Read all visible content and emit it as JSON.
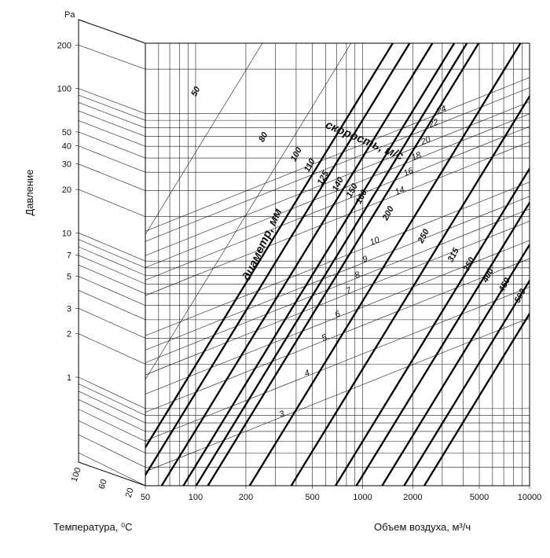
{
  "chart_data": {
    "type": "line",
    "xlabel": "Объем воздуха, м³/ч",
    "ylabel": "Давление",
    "y_unit": "Pa",
    "temp_label": "Температура, ⁰С",
    "x_scale": "log",
    "y_scale": "log",
    "xlim": [
      50,
      10000
    ],
    "ylim": [
      0.3,
      300
    ],
    "x_ticks": [
      50,
      100,
      200,
      500,
      1000,
      2000,
      5000,
      10000
    ],
    "x_tick_labels": [
      "50",
      "100",
      "200",
      "500",
      "1000",
      "2000",
      "5000",
      "10000"
    ],
    "y_ticks": [
      1,
      2,
      3,
      5,
      7,
      10,
      20,
      30,
      40,
      50,
      100,
      200
    ],
    "y_tick_labels": [
      "1",
      "2",
      "3",
      "5",
      "7",
      "10",
      "20",
      "30",
      "40",
      "50",
      "100",
      "200"
    ],
    "temperature_ticks": [
      "100",
      "60",
      "20"
    ],
    "diameter_title": "диаметр, мм",
    "velocity_title": "скорость, м/с",
    "diameters": [
      {
        "label": "50",
        "x_at_1Pa": 11.5,
        "bold": false
      },
      {
        "label": "80",
        "x_at_1Pa": 39.1,
        "bold": false
      },
      {
        "label": "100",
        "x_at_1Pa": 69.4,
        "bold": true
      },
      {
        "label": "110",
        "x_at_1Pa": 87.6,
        "bold": true
      },
      {
        "label": "125",
        "x_at_1Pa": 120.0,
        "bold": true
      },
      {
        "label": "140",
        "x_at_1Pa": 162.0,
        "bold": true
      },
      {
        "label": "150",
        "x_at_1Pa": 193.0,
        "bold": true
      },
      {
        "label": "160",
        "x_at_1Pa": 227.0,
        "bold": true
      },
      {
        "label": "200",
        "x_at_1Pa": 404.0,
        "bold": true
      },
      {
        "label": "250",
        "x_at_1Pa": 717.0,
        "bold": true
      },
      {
        "label": "315",
        "x_at_1Pa": 1320.0,
        "bold": true
      },
      {
        "label": "350",
        "x_at_1Pa": 1760.0,
        "bold": true
      },
      {
        "label": "400",
        "x_at_1Pa": 2510.0,
        "bold": true
      },
      {
        "label": "450",
        "x_at_1Pa": 3400.0,
        "bold": true
      },
      {
        "label": "500",
        "x_at_1Pa": 4490.0,
        "bold": true
      }
    ],
    "velocities": [
      {
        "label": "3"
      },
      {
        "label": "4"
      },
      {
        "label": "5"
      },
      {
        "label": "6"
      },
      {
        "label": "7"
      },
      {
        "label": "8"
      },
      {
        "label": "9"
      },
      {
        "label": "10"
      },
      {
        "label": "14"
      },
      {
        "label": "16"
      },
      {
        "label": "18"
      },
      {
        "label": "20"
      },
      {
        "label": "22"
      },
      {
        "label": "24"
      }
    ]
  }
}
